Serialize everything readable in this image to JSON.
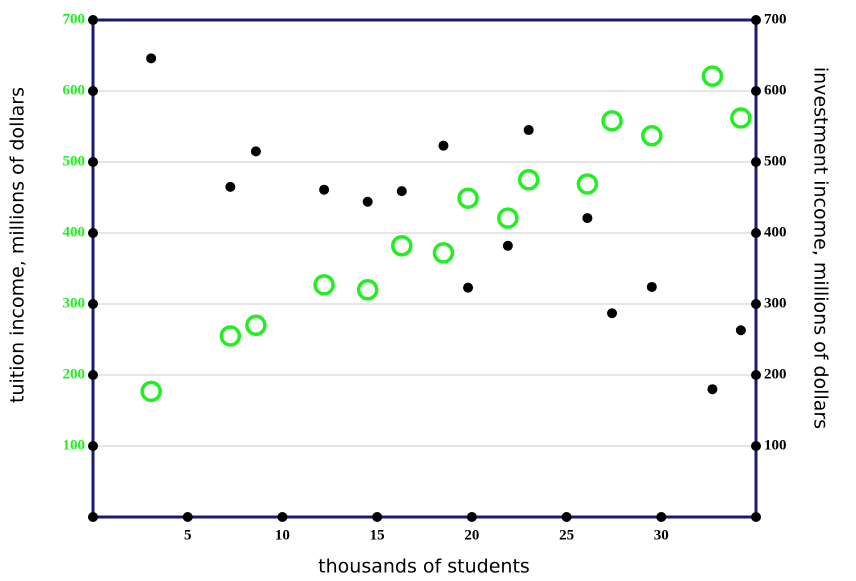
{
  "chart_data": {
    "type": "scatter",
    "xlabel": "thousands of students",
    "ylabel": "tuition income, millions of dollars",
    "y2label": "investment income, millions of dollars",
    "x": [
      3.07,
      7.25,
      8.6,
      12.2,
      14.5,
      16.3,
      18.5,
      19.8,
      21.9,
      23.0,
      26.1,
      27.4,
      29.5,
      32.7,
      34.2
    ],
    "series": [
      {
        "color": "#22ee22",
        "values": [
          177,
          255,
          270,
          327,
          320,
          382,
          372,
          449,
          421,
          475,
          469,
          558,
          537,
          621,
          562
        ]
      },
      {
        "color": "#000000",
        "axis": "y2",
        "values": [
          646,
          465,
          515,
          461,
          444,
          459,
          523,
          323,
          382,
          545,
          421,
          287,
          324,
          180,
          263
        ]
      }
    ],
    "xlim": [
      0,
      35
    ],
    "xticks": [
      5,
      10,
      15,
      20,
      25,
      30
    ],
    "ylim": [
      0,
      700
    ],
    "yticks": [
      100,
      200,
      300,
      400,
      500,
      600,
      700
    ],
    "y2lim": [
      0,
      700
    ],
    "y2ticks": [
      100,
      200,
      300,
      400,
      500,
      600,
      700
    ],
    "ytick_color": "#22ee22",
    "y2tick_color": "#000000",
    "grid": true
  }
}
